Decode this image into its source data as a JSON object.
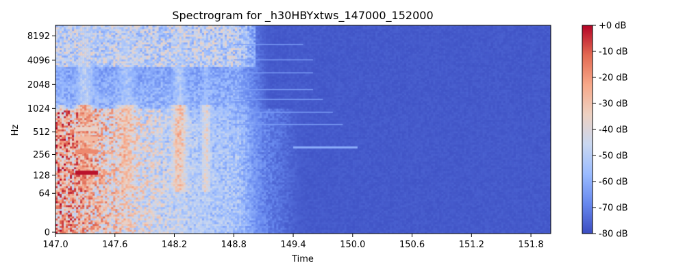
{
  "chart_data": {
    "type": "heatmap",
    "title": "Spectrogram for _h30HBYxtws_147000_152000",
    "xlabel": "Time",
    "ylabel": "Hz",
    "x_ticks": [
      "147.0",
      "147.6",
      "148.2",
      "148.8",
      "149.4",
      "150.0",
      "150.6",
      "151.2",
      "151.8"
    ],
    "x_tick_values": [
      147.0,
      147.6,
      148.2,
      148.8,
      149.4,
      150.0,
      150.6,
      151.2,
      151.8
    ],
    "xlim": [
      147.0,
      152.0
    ],
    "y_scale": "log-frequency",
    "y_ticks": [
      "0",
      "64",
      "128",
      "256",
      "512",
      "1024",
      "2048",
      "4096",
      "8192"
    ],
    "y_tick_values": [
      0,
      64,
      128,
      256,
      512,
      1024,
      2048,
      4096,
      8192
    ],
    "ylim": [
      0,
      11025
    ],
    "colorbar": {
      "ticks": [
        "+0 dB",
        "-10 dB",
        "-20 dB",
        "-30 dB",
        "-40 dB",
        "-50 dB",
        "-60 dB",
        "-70 dB",
        "-80 dB"
      ],
      "tick_values": [
        0,
        -10,
        -20,
        -30,
        -40,
        -50,
        -60,
        -70,
        -80
      ],
      "range": [
        -80,
        0
      ],
      "colormap": "coolwarm",
      "colors": [
        "#3b4cc0",
        "#6788ee",
        "#9abbff",
        "#c9d7f0",
        "#edd1c2",
        "#f7a889",
        "#e26952",
        "#b40426"
      ]
    },
    "activity_end_time": 150.0,
    "grid": false,
    "legend": "none"
  }
}
